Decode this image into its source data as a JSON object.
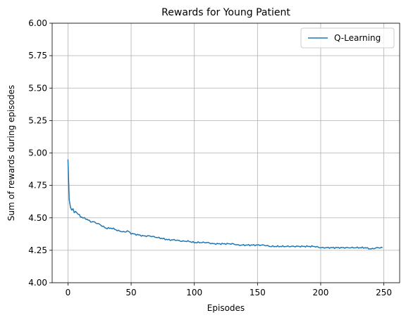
{
  "chart_data": {
    "type": "line",
    "title": "Rewards for Young Patient",
    "xlabel": "Episodes",
    "ylabel": "Sum of rewards during episodes",
    "xlim": [
      -12.5,
      262.5
    ],
    "ylim": [
      4.0,
      6.0
    ],
    "xticks": [
      0,
      50,
      100,
      150,
      200,
      250
    ],
    "yticks": [
      4.0,
      4.25,
      4.5,
      4.75,
      5.0,
      5.25,
      5.5,
      5.75,
      6.0
    ],
    "ytick_decimals": 2,
    "grid": true,
    "legend_position": "top-right",
    "series": [
      {
        "name": "Q-Learning",
        "color": "#1f77b4",
        "x": [
          0,
          1,
          2,
          3,
          4,
          5,
          6,
          8,
          10,
          12,
          15,
          18,
          20,
          25,
          30,
          35,
          40,
          45,
          47,
          50,
          55,
          60,
          65,
          70,
          75,
          80,
          85,
          90,
          95,
          100,
          105,
          110,
          115,
          120,
          125,
          130,
          135,
          140,
          145,
          150,
          155,
          160,
          165,
          170,
          175,
          180,
          185,
          190,
          195,
          200,
          205,
          210,
          215,
          220,
          225,
          230,
          235,
          240,
          245,
          249
        ],
        "y": [
          4.95,
          4.64,
          4.58,
          4.56,
          4.57,
          4.54,
          4.55,
          4.53,
          4.51,
          4.5,
          4.49,
          4.47,
          4.47,
          4.45,
          4.42,
          4.42,
          4.4,
          4.39,
          4.4,
          4.38,
          4.37,
          4.36,
          4.36,
          4.35,
          4.34,
          4.33,
          4.33,
          4.32,
          4.32,
          4.31,
          4.31,
          4.31,
          4.3,
          4.3,
          4.3,
          4.3,
          4.29,
          4.29,
          4.29,
          4.29,
          4.29,
          4.28,
          4.28,
          4.28,
          4.28,
          4.28,
          4.28,
          4.28,
          4.28,
          4.27,
          4.27,
          4.27,
          4.27,
          4.27,
          4.27,
          4.27,
          4.27,
          4.26,
          4.27,
          4.27
        ]
      }
    ]
  }
}
